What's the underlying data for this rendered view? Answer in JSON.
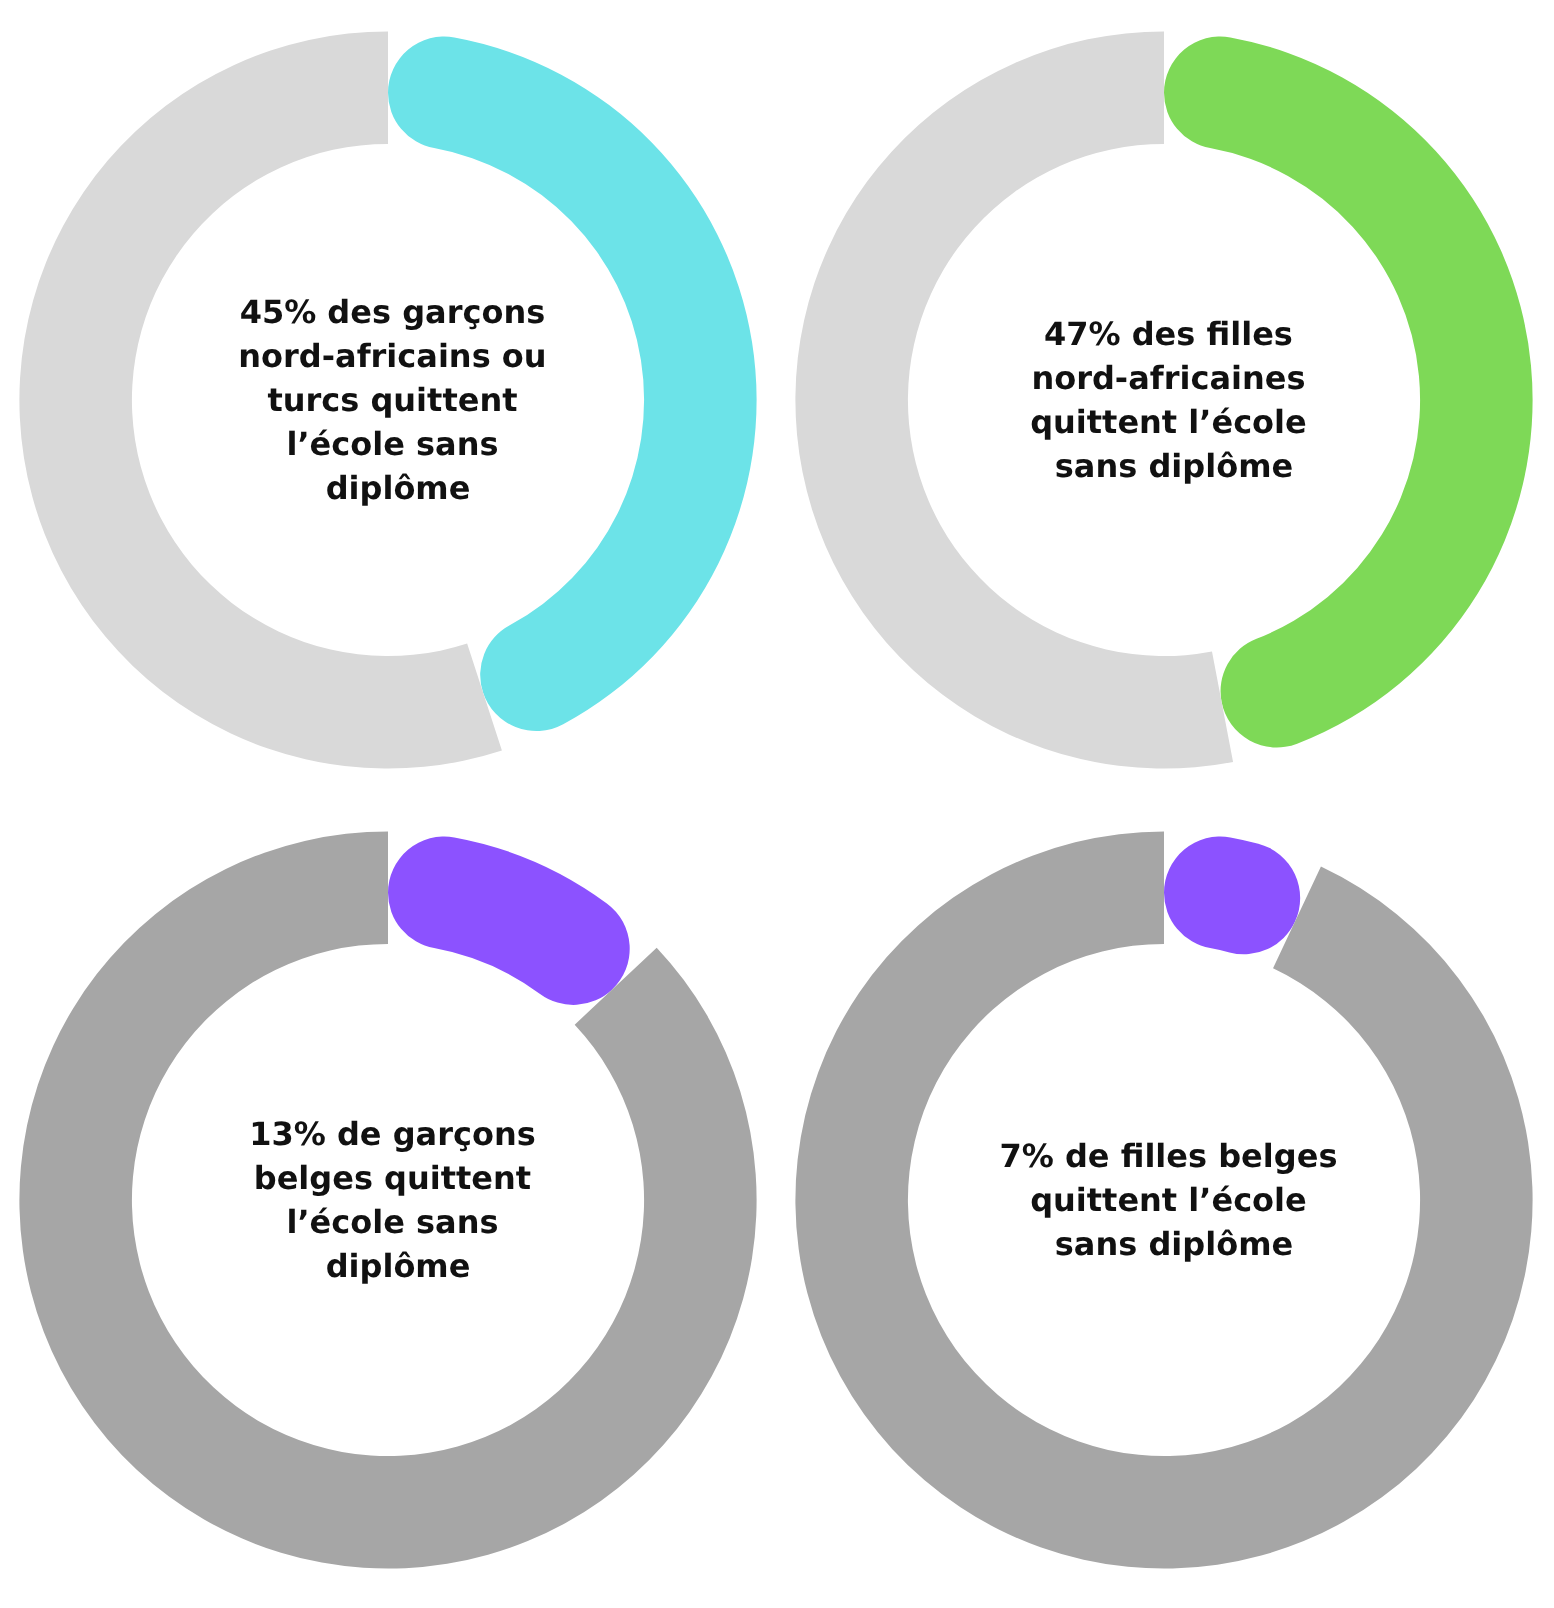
{
  "chart_data": [
    {
      "type": "donut",
      "title": "45% des garçons nord-africains ou turcs quittent l’école sans diplôme",
      "categories": [
        null,
        null
      ],
      "values": [
        45,
        55
      ],
      "colors": [
        "#6ce3e8",
        "#d9d9d9"
      ]
    },
    {
      "type": "donut",
      "title": "47% des filles nord-africaines quittent l’école sans diplôme",
      "categories": [
        null,
        null
      ],
      "values": [
        47,
        53
      ],
      "colors": [
        "#7ed957",
        "#d9d9d9"
      ]
    },
    {
      "type": "donut",
      "title": "13% de garçons belges quittent l’école sans diplôme",
      "categories": [
        null,
        null
      ],
      "values": [
        13,
        87
      ],
      "colors": [
        "#8c52ff",
        "#a6a6a6"
      ]
    },
    {
      "type": "donut",
      "title": "7% de filles belges quittent l’école sans diplôme",
      "categories": [
        null,
        null
      ],
      "values": [
        7,
        93
      ],
      "colors": [
        "#8c52ff",
        "#a6a6a6"
      ]
    }
  ]
}
